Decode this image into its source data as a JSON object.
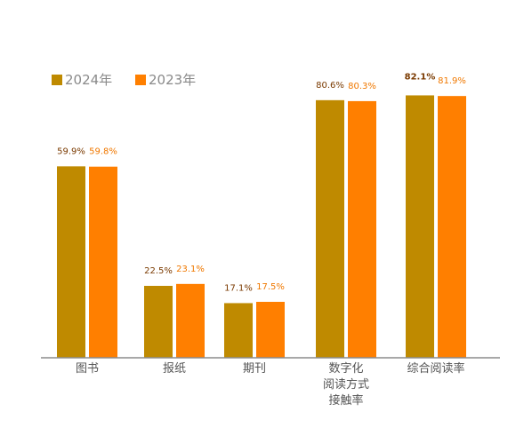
{
  "chart_data": {
    "type": "bar",
    "title": "",
    "xlabel": "",
    "ylabel": "",
    "ylim": [
      0,
      100
    ],
    "grid": false,
    "legend_position": "top-left",
    "categories": [
      [
        "图书"
      ],
      [
        "报纸"
      ],
      [
        "期刊"
      ],
      [
        "数字化",
        "阅读方式",
        "接触率"
      ],
      [
        "综合阅读率"
      ]
    ],
    "series": [
      {
        "name": "2024年",
        "color": "#BF8A00",
        "label_color": "#7A3A00",
        "values": [
          59.9,
          22.5,
          17.1,
          80.6,
          82.1
        ],
        "labels": [
          "59.9%",
          "22.5%",
          "17.1%",
          "80.6%",
          "82.1%"
        ]
      },
      {
        "name": "2023年",
        "color": "#FF7F00",
        "label_color": "#F07800",
        "values": [
          59.8,
          23.1,
          17.5,
          80.3,
          81.9
        ],
        "labels": [
          "59.8%",
          "23.1%",
          "17.5%",
          "80.3%",
          "81.9%"
        ]
      }
    ],
    "emphasized_label": {
      "series": 0,
      "category": 4
    }
  }
}
